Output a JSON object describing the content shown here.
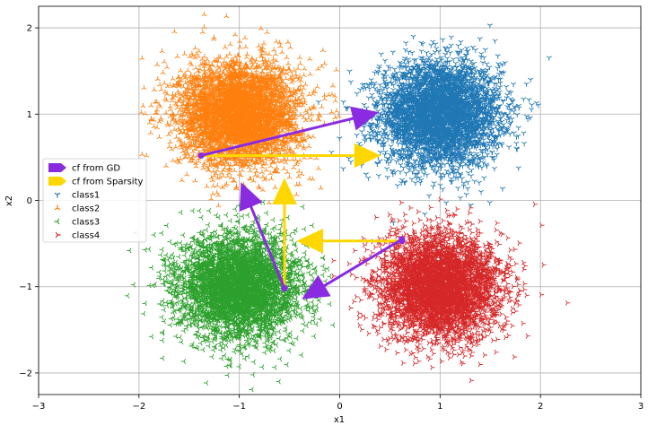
{
  "chart_data": {
    "type": "scatter",
    "title": "",
    "xlabel": "x1",
    "ylabel": "x2",
    "xlim": [
      -3,
      3
    ],
    "ylim": [
      -2.25,
      2.25
    ],
    "x_ticks": [
      -3,
      -2,
      -1,
      0,
      1,
      2,
      3
    ],
    "y_ticks": [
      -2,
      -1,
      0,
      1,
      2
    ],
    "grid": true,
    "legend_position": "center-left",
    "series": [
      {
        "name": "class1",
        "marker": "tri_down",
        "color": "#1f77b4",
        "center": [
          1.0,
          1.0
        ],
        "spread": 0.3
      },
      {
        "name": "class2",
        "marker": "tri_up",
        "color": "#ff7f0e",
        "center": [
          -1.0,
          1.0
        ],
        "spread": 0.3
      },
      {
        "name": "class3",
        "marker": "tri_left",
        "color": "#2ca02c",
        "center": [
          -1.0,
          -1.0
        ],
        "spread": 0.3
      },
      {
        "name": "class4",
        "marker": "tri_right",
        "color": "#d62728",
        "center": [
          1.0,
          -1.0
        ],
        "spread": 0.3
      }
    ],
    "arrows": [
      {
        "name": "cf from GD",
        "color": "#8a2be2",
        "from": [
          -1.38,
          0.52
        ],
        "to": [
          0.38,
          1.02
        ]
      },
      {
        "name": "cf from GD",
        "color": "#8a2be2",
        "from": [
          -0.55,
          -1.02
        ],
        "to": [
          -0.98,
          0.2
        ]
      },
      {
        "name": "cf from GD",
        "color": "#8a2be2",
        "from": [
          0.62,
          -0.45
        ],
        "to": [
          -0.37,
          -1.14
        ]
      },
      {
        "name": "cf from Sparsity",
        "color": "#ffd700",
        "from": [
          -1.38,
          0.52
        ],
        "to": [
          0.4,
          0.52
        ]
      },
      {
        "name": "cf from Sparsity",
        "color": "#ffd700",
        "from": [
          -0.55,
          -1.02
        ],
        "to": [
          -0.55,
          0.25
        ]
      },
      {
        "name": "cf from Sparsity",
        "color": "#ffd700",
        "from": [
          0.62,
          -0.47
        ],
        "to": [
          -0.42,
          -0.47
        ]
      }
    ],
    "legend": [
      {
        "label": "cf from GD",
        "kind": "arrow",
        "color": "#8a2be2"
      },
      {
        "label": "cf from Sparsity",
        "kind": "arrow",
        "color": "#ffd700"
      },
      {
        "label": "class1",
        "kind": "tri_down",
        "color": "#1f77b4"
      },
      {
        "label": "class2",
        "kind": "tri_up",
        "color": "#ff7f0e"
      },
      {
        "label": "class3",
        "kind": "tri_left",
        "color": "#2ca02c"
      },
      {
        "label": "class4",
        "kind": "tri_right",
        "color": "#d62728"
      }
    ]
  }
}
